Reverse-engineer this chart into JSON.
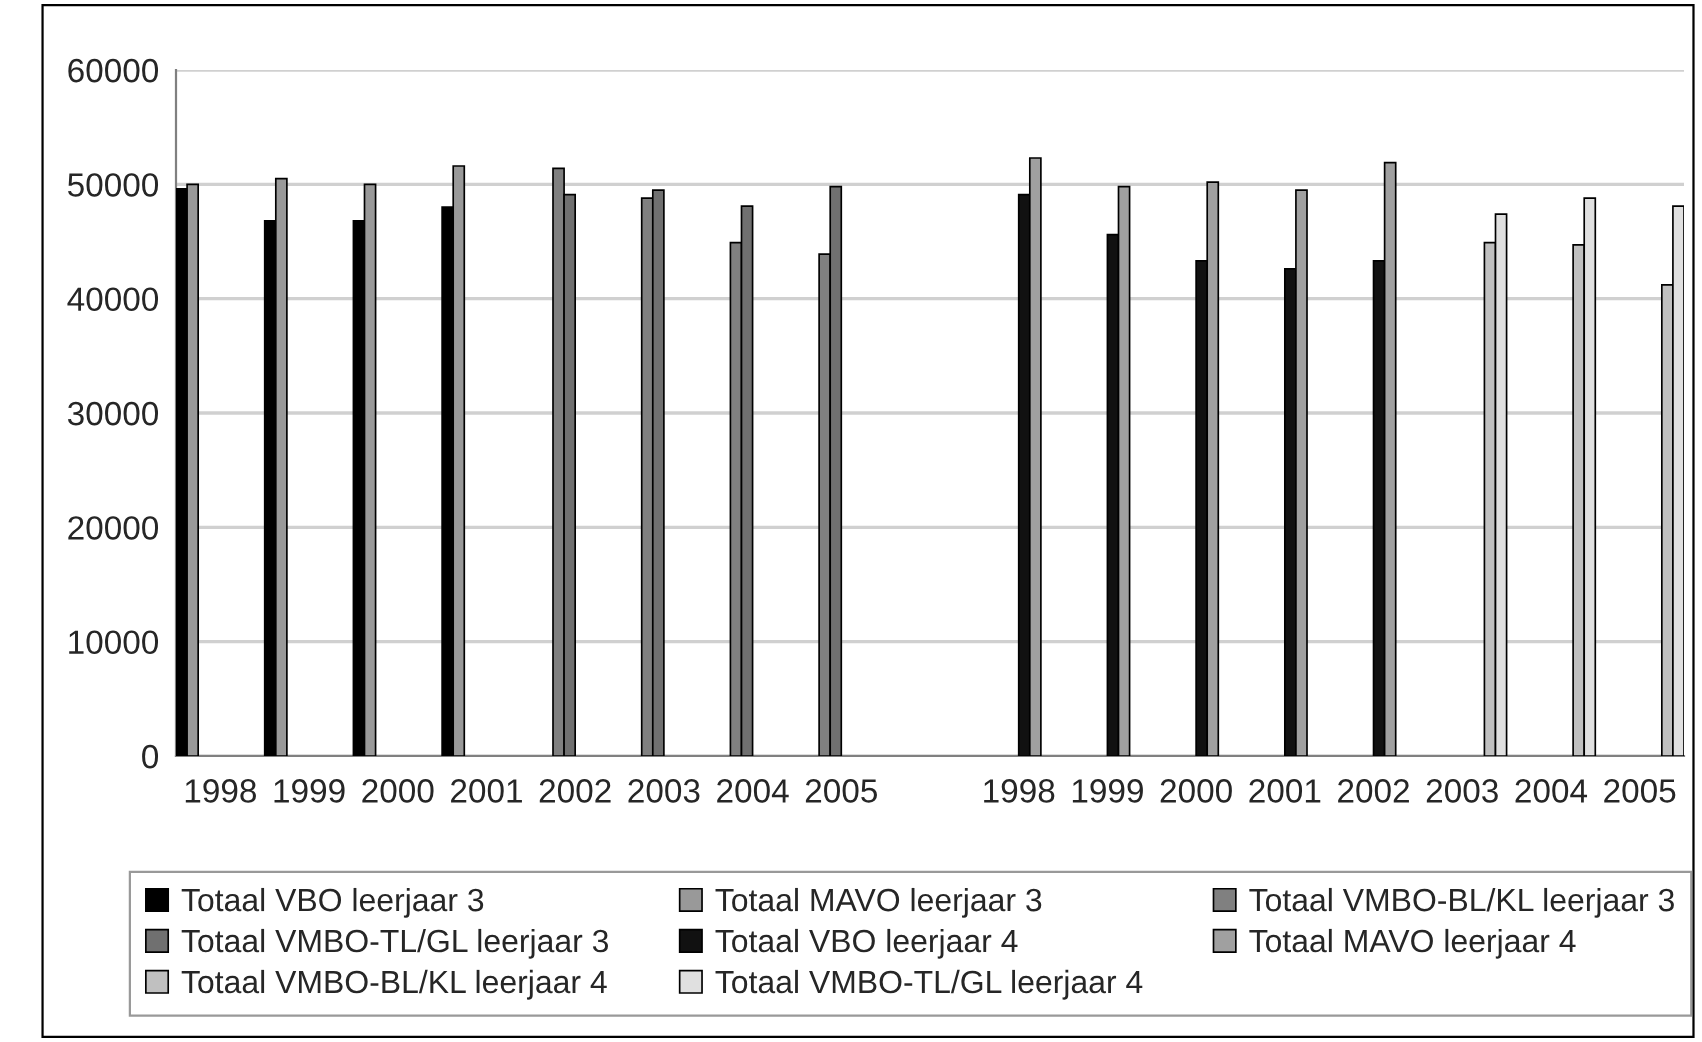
{
  "chart_data": {
    "type": "bar",
    "categories": [
      "1998",
      "1999",
      "2000",
      "2001",
      "2002",
      "2003",
      "2004",
      "2005",
      null,
      "1998",
      "1999",
      "2000",
      "2001",
      "2002",
      "2003",
      "2004",
      "2005"
    ],
    "series": [
      {
        "name": "Totaal VBO leerjaar 3",
        "color": "#000000",
        "values": [
          49600,
          46800,
          46800,
          48000,
          null,
          null,
          null,
          null,
          null,
          null,
          null,
          null,
          null,
          null,
          null,
          null,
          null
        ]
      },
      {
        "name": "Totaal MAVO leerjaar 3",
        "color": "#999999",
        "values": [
          50000,
          50500,
          50000,
          51600,
          null,
          null,
          null,
          null,
          null,
          null,
          null,
          null,
          null,
          null,
          null,
          null,
          null
        ]
      },
      {
        "name": "Totaal VMBO-BL/KL leerjaar 3",
        "color": "#808080",
        "values": [
          null,
          null,
          null,
          null,
          51400,
          48800,
          44900,
          43900,
          null,
          null,
          null,
          null,
          null,
          null,
          null,
          null,
          null
        ]
      },
      {
        "name": "Totaal VMBO-TL/GL leerjaar 3",
        "color": "#707070",
        "values": [
          null,
          null,
          null,
          null,
          49100,
          49500,
          48100,
          49800,
          null,
          null,
          null,
          null,
          null,
          null,
          null,
          null,
          null
        ]
      },
      {
        "name": "Totaal VBO leerjaar 4",
        "color": "#111111",
        "values": [
          null,
          null,
          null,
          null,
          null,
          null,
          null,
          null,
          null,
          49100,
          45600,
          43300,
          42600,
          43300,
          null,
          null,
          null
        ]
      },
      {
        "name": "Totaal MAVO leerjaar 4",
        "color": "#a0a0a0",
        "values": [
          null,
          null,
          null,
          null,
          null,
          null,
          null,
          null,
          null,
          52300,
          49800,
          50200,
          49500,
          51900,
          null,
          null,
          null
        ]
      },
      {
        "name": "Totaal VMBO-BL/KL leerjaar 4",
        "color": "#c0c0c0",
        "values": [
          null,
          null,
          null,
          null,
          null,
          null,
          null,
          null,
          null,
          null,
          null,
          null,
          null,
          null,
          44900,
          44700,
          41200
        ]
      },
      {
        "name": "Totaal VMBO-TL/GL leerjaar 4",
        "color": "#e0e0e0",
        "values": [
          null,
          null,
          null,
          null,
          null,
          null,
          null,
          null,
          null,
          null,
          null,
          null,
          null,
          null,
          47400,
          48800,
          48100
        ]
      }
    ],
    "ylim": [
      0,
      60000
    ],
    "yticks": [
      0,
      10000,
      20000,
      30000,
      40000,
      50000,
      60000
    ],
    "grid": "y",
    "legend": "bottom"
  }
}
